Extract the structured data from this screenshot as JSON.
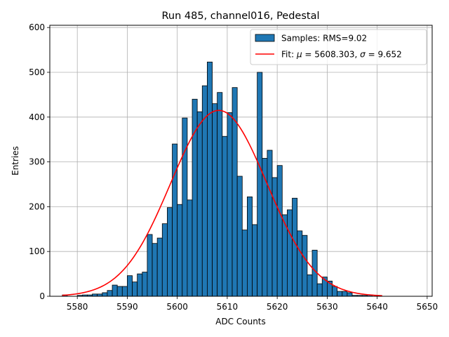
{
  "chart_data": {
    "type": "bar",
    "title": "Run 485, channel016, Pedestal",
    "xlabel": "ADC Counts",
    "ylabel": "Entries",
    "xlim": [
      5574.5,
      5651.0
    ],
    "ylim": [
      0,
      605
    ],
    "xticks": [
      5580,
      5590,
      5600,
      5610,
      5620,
      5630,
      5640,
      5650
    ],
    "yticks": [
      0,
      100,
      200,
      300,
      400,
      500,
      600
    ],
    "grid": true,
    "legend_position": "top-right",
    "bin_width": 1,
    "histogram": {
      "name": "Samples: RMS=9.02",
      "color": "#1f77b4",
      "edge_color": "#000000",
      "bin_left_edges": [
        5577,
        5578,
        5579,
        5580,
        5581,
        5582,
        5583,
        5584,
        5585,
        5586,
        5587,
        5588,
        5589,
        5590,
        5591,
        5592,
        5593,
        5594,
        5595,
        5596,
        5597,
        5598,
        5599,
        5600,
        5601,
        5602,
        5603,
        5604,
        5605,
        5606,
        5607,
        5608,
        5609,
        5610,
        5611,
        5612,
        5613,
        5614,
        5615,
        5616,
        5617,
        5618,
        5619,
        5620,
        5621,
        5622,
        5623,
        5624,
        5625,
        5626,
        5627,
        5628,
        5629,
        5630,
        5631,
        5632,
        5633,
        5634,
        5635,
        5636,
        5637,
        5638,
        5639,
        5640
      ],
      "counts": [
        3,
        0,
        0,
        2,
        3,
        3,
        5,
        5,
        8,
        13,
        25,
        22,
        22,
        46,
        32,
        50,
        54,
        138,
        118,
        130,
        162,
        198,
        340,
        205,
        398,
        215,
        440,
        412,
        470,
        523,
        430,
        455,
        357,
        410,
        466,
        268,
        148,
        222,
        160,
        500,
        308,
        326,
        265,
        292,
        182,
        193,
        219,
        146,
        136,
        48,
        103,
        28,
        43,
        34,
        22,
        11,
        11,
        8,
        2,
        2,
        2,
        3,
        0,
        0
      ]
    },
    "fit": {
      "name": "Fit: μ = 5608.303, σ = 9.652",
      "name_parts": [
        "Fit: ",
        "μ",
        " = 5608.303, ",
        "σ",
        " = 9.652"
      ],
      "color": "#ff0000",
      "type": "gaussian",
      "mu": 5608.303,
      "sigma": 9.652,
      "amplitude": 415,
      "x_range": [
        5577,
        5641
      ]
    }
  }
}
